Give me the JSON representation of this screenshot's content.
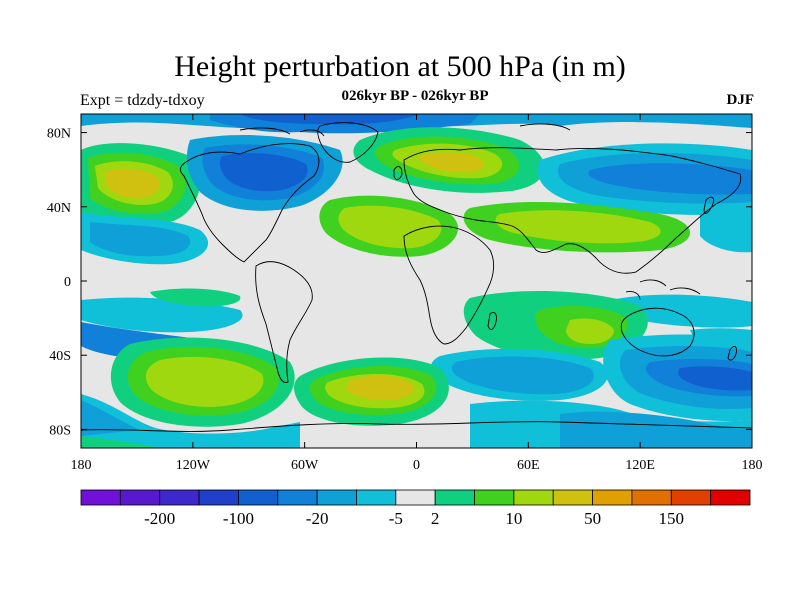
{
  "title": "Height perturbation at 500 hPa (in m)",
  "subtitle": "026kyr BP - 026kyr BP",
  "left_string": "Expt = tdzdy-tdxoy",
  "right_string": "DJF",
  "map": {
    "projection": "cylindrical-equidistant",
    "lon_range": [
      -180,
      180
    ],
    "lat_range": [
      -90,
      90
    ],
    "x_ticks": [
      {
        "value": -180,
        "label": "180"
      },
      {
        "value": -120,
        "label": "120W"
      },
      {
        "value": -60,
        "label": "60W"
      },
      {
        "value": 0,
        "label": "0"
      },
      {
        "value": 60,
        "label": "60E"
      },
      {
        "value": 120,
        "label": "120E"
      },
      {
        "value": 180,
        "label": "180"
      }
    ],
    "y_ticks": [
      {
        "value": 80,
        "label": "80N"
      },
      {
        "value": 40,
        "label": "40N"
      },
      {
        "value": 0,
        "label": "0"
      },
      {
        "value": -40,
        "label": "40S"
      },
      {
        "value": -80,
        "label": "80S"
      }
    ]
  },
  "colorbar": {
    "colors": [
      "#7010d8",
      "#5818d0",
      "#3c28cc",
      "#2040cc",
      "#1060d0",
      "#1080d8",
      "#10a0d8",
      "#10c0d8",
      "#e6e6e6",
      "#10d080",
      "#40d020",
      "#a0d810",
      "#d0c010",
      "#e0a000",
      "#e07000",
      "#e04000",
      "#e00000"
    ],
    "labels": [
      {
        "edge": 2,
        "text": "-200"
      },
      {
        "edge": 4,
        "text": "-100"
      },
      {
        "edge": 6,
        "text": "-20"
      },
      {
        "edge": 8,
        "text": "-5"
      },
      {
        "edge": 9,
        "text": "2"
      },
      {
        "edge": 11,
        "text": "10"
      },
      {
        "edge": 13,
        "text": "50"
      },
      {
        "edge": 15,
        "text": "150"
      }
    ]
  }
}
